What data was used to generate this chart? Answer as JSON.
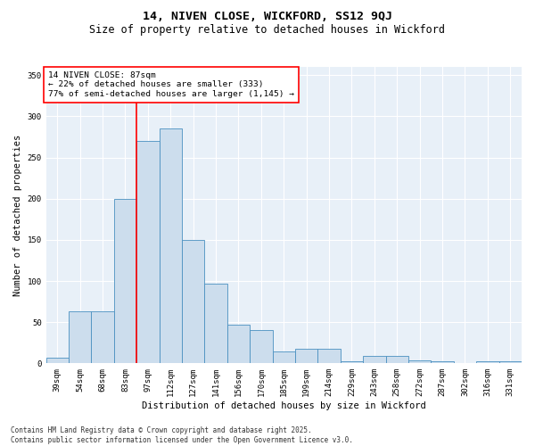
{
  "title1": "14, NIVEN CLOSE, WICKFORD, SS12 9QJ",
  "title2": "Size of property relative to detached houses in Wickford",
  "xlabel": "Distribution of detached houses by size in Wickford",
  "ylabel": "Number of detached properties",
  "bar_labels": [
    "39sqm",
    "54sqm",
    "68sqm",
    "83sqm",
    "97sqm",
    "112sqm",
    "127sqm",
    "141sqm",
    "156sqm",
    "170sqm",
    "185sqm",
    "199sqm",
    "214sqm",
    "229sqm",
    "243sqm",
    "258sqm",
    "272sqm",
    "287sqm",
    "302sqm",
    "316sqm",
    "331sqm"
  ],
  "bar_values": [
    7,
    63,
    63,
    200,
    270,
    285,
    150,
    97,
    47,
    40,
    14,
    18,
    18,
    2,
    9,
    9,
    4,
    2,
    0,
    3,
    2
  ],
  "bar_color": "#ccdded",
  "bar_edgecolor": "#4a90c0",
  "vline_color": "red",
  "vline_pos": 3.5,
  "annotation_text": "14 NIVEN CLOSE: 87sqm\n← 22% of detached houses are smaller (333)\n77% of semi-detached houses are larger (1,145) →",
  "annotation_box_color": "white",
  "annotation_box_edgecolor": "red",
  "ylim": [
    0,
    360
  ],
  "yticks": [
    0,
    50,
    100,
    150,
    200,
    250,
    300,
    350
  ],
  "footnote": "Contains HM Land Registry data © Crown copyright and database right 2025.\nContains public sector information licensed under the Open Government Licence v3.0.",
  "bg_color": "#ffffff",
  "plot_bg_color": "#e8f0f8",
  "grid_color": "#ffffff",
  "title_fontsize": 9.5,
  "subtitle_fontsize": 8.5,
  "axis_label_fontsize": 7.5,
  "tick_fontsize": 6.5,
  "annotation_fontsize": 6.8,
  "footnote_fontsize": 5.5
}
